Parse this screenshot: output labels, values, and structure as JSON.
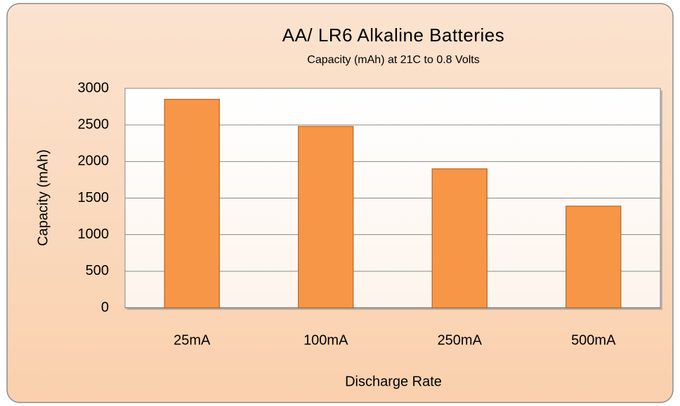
{
  "chart_data": {
    "type": "bar",
    "title": "AA/ LR6 Alkaline Batteries",
    "subtitle": "Capacity (mAh) at 21C to 0.8 Volts",
    "x_label": "Discharge Rate",
    "y_label": "Capacity (mAh)",
    "categories": [
      "25mA",
      "100mA",
      "250mA",
      "500mA"
    ],
    "values": [
      2850,
      2480,
      1900,
      1390
    ],
    "color": "#f79646",
    "ylim": [
      0,
      3000
    ],
    "yticks": [
      0,
      500,
      1000,
      1500,
      2000,
      2500,
      3000
    ],
    "grid": true
  }
}
